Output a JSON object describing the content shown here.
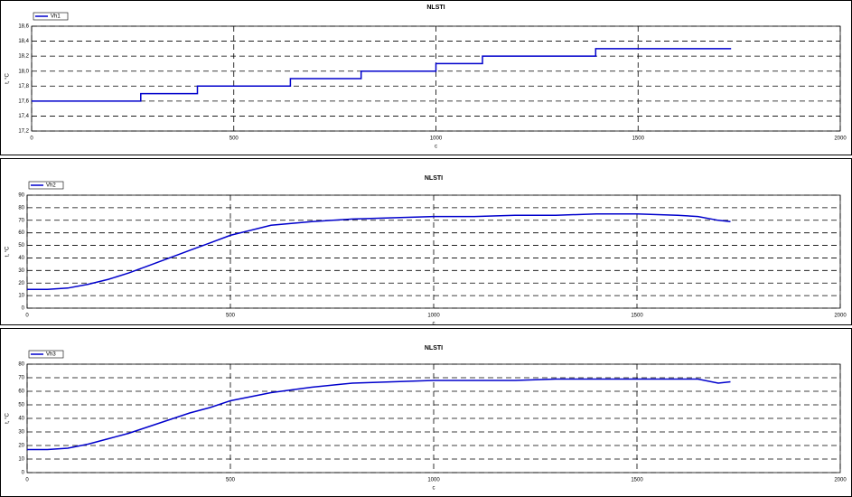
{
  "chart_data": [
    {
      "type": "line",
      "title": "NLSTI",
      "x_label": "c",
      "y_label": "t, °C",
      "x": [
        0,
        270,
        270,
        410,
        410,
        640,
        640,
        815,
        815,
        1000,
        1000,
        1115,
        1115,
        1395,
        1395,
        1730
      ],
      "series": [
        {
          "name": "Vh1",
          "color": "#0000cc",
          "values": [
            17.6,
            17.6,
            17.7,
            17.7,
            17.8,
            17.8,
            17.9,
            17.9,
            18.0,
            18.0,
            18.1,
            18.1,
            18.2,
            18.2,
            18.3,
            18.3
          ]
        }
      ],
      "xlim": [
        0,
        2000
      ],
      "xticks": [
        0,
        500,
        1000,
        1500,
        2000
      ],
      "ylim": [
        17.2,
        18.6
      ],
      "yticks": [
        {
          "value": 17.2,
          "label": "17,2"
        },
        {
          "value": 17.4,
          "label": "17,4"
        },
        {
          "value": 17.6,
          "label": "17,6"
        },
        {
          "value": 17.8,
          "label": "17,8"
        },
        {
          "value": 18.0,
          "label": "18,0"
        },
        {
          "value": 18.2,
          "label": "18,2"
        },
        {
          "value": 18.4,
          "label": "18,4"
        },
        {
          "value": 18.6,
          "label": "18,6"
        }
      ],
      "grid": true,
      "legend": "top-left"
    },
    {
      "type": "line",
      "title": "NLSTI",
      "x_label": "c",
      "y_label": "t, °C",
      "x": [
        0,
        50,
        100,
        150,
        200,
        250,
        300,
        350,
        400,
        450,
        500,
        600,
        700,
        800,
        900,
        1000,
        1100,
        1200,
        1300,
        1400,
        1500,
        1600,
        1650,
        1700,
        1730
      ],
      "series": [
        {
          "name": "Vh2",
          "color": "#0000cc",
          "values": [
            15,
            15,
            16,
            19,
            23,
            28,
            34,
            40,
            46,
            52,
            58,
            66,
            69,
            71,
            72,
            73,
            73,
            74,
            74,
            75,
            75,
            74,
            73,
            70,
            69
          ]
        }
      ],
      "xlim": [
        0,
        2000
      ],
      "xticks": [
        0,
        500,
        1000,
        1500,
        2000
      ],
      "ylim": [
        0,
        90
      ],
      "yticks": [
        0,
        10,
        20,
        30,
        40,
        50,
        60,
        70,
        80,
        90
      ],
      "grid": true,
      "legend": "top-left"
    },
    {
      "type": "line",
      "title": "NLSTI",
      "x_label": "c",
      "y_label": "t, °C",
      "x": [
        0,
        50,
        100,
        150,
        200,
        250,
        300,
        350,
        400,
        450,
        500,
        600,
        700,
        800,
        900,
        1000,
        1100,
        1200,
        1300,
        1400,
        1500,
        1600,
        1650,
        1700,
        1730
      ],
      "series": [
        {
          "name": "Vh3",
          "color": "#0000cc",
          "values": [
            17,
            17,
            18,
            21,
            25,
            29,
            34,
            39,
            44,
            48,
            53,
            59,
            63,
            66,
            67,
            68,
            68,
            68,
            69,
            69,
            69,
            69,
            69,
            66,
            67
          ]
        }
      ],
      "xlim": [
        0,
        2000
      ],
      "xticks": [
        0,
        500,
        1000,
        1500,
        2000
      ],
      "ylim": [
        0,
        80
      ],
      "yticks": [
        0,
        10,
        20,
        30,
        40,
        50,
        60,
        70,
        80
      ],
      "grid": true,
      "legend": "top-left"
    }
  ]
}
